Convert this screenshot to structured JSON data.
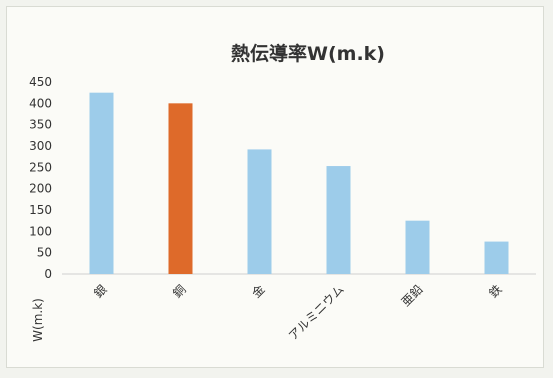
{
  "chart_data": {
    "type": "bar",
    "title": "熱伝導率W(m.k)",
    "ylabel": "W(m.k)",
    "xlabel": "",
    "categories": [
      "銀",
      "銅",
      "金",
      "アルミニウム",
      "亜鉛",
      "鉄"
    ],
    "values": [
      425,
      400,
      292,
      253,
      125,
      76
    ],
    "ylim": [
      0,
      450
    ],
    "yticks": [
      0,
      50,
      100,
      150,
      200,
      250,
      300,
      350,
      400,
      450
    ],
    "colors": [
      "#9dccea",
      "#de6a2a",
      "#9dccea",
      "#9dccea",
      "#9dccea",
      "#9dccea"
    ],
    "grid": false,
    "legend": "none"
  }
}
